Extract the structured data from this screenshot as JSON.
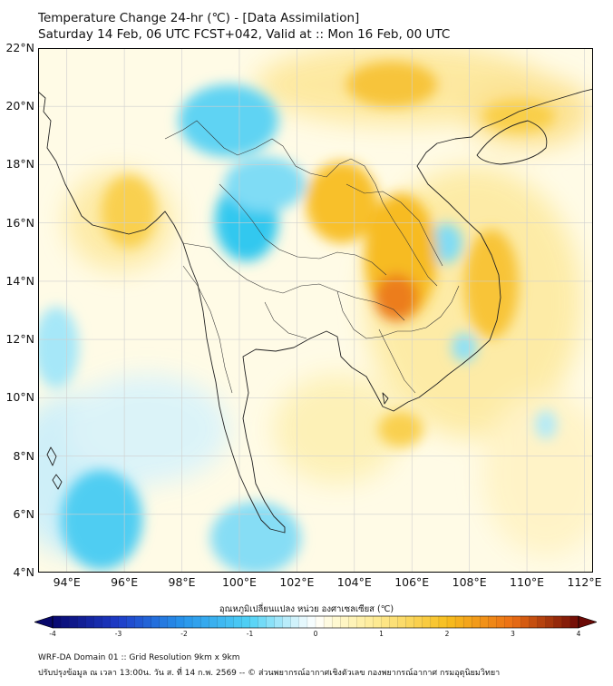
{
  "title": {
    "line1": "Temperature Change 24-hr (℃) - [Data Assimilation]",
    "line2": "Saturday 14 Feb, 06 UTC FCST+042, Valid at :: Mon 16 Feb, 00 UTC"
  },
  "map": {
    "lat_labels": [
      "22°N",
      "20°N",
      "18°N",
      "16°N",
      "14°N",
      "12°N",
      "10°N",
      "8°N",
      "6°N",
      "4°N"
    ],
    "lon_labels": [
      "94°E",
      "96°E",
      "98°E",
      "100°E",
      "102°E",
      "104°E",
      "106°E",
      "108°E",
      "110°E",
      "112°E"
    ],
    "lat_range": [
      4,
      22
    ],
    "lon_range": [
      93,
      112.3
    ],
    "cool_color": "#33ccf0",
    "warm_color": "#f7b500",
    "hot_color": "#ec7a1a"
  },
  "colorbar": {
    "title": "อุณหภูมิเปลี่ยนแปลง หน่วย องศาเซลเซียส (℃)",
    "tick_labels": [
      "-4",
      "-3",
      "-2",
      "-1",
      "0",
      "1",
      "2",
      "3",
      "4"
    ],
    "range": [
      -4,
      4
    ]
  },
  "footer": {
    "line1": "WRF-DA Domain 01 :: Grid Resolution 9km x 9km",
    "line2": "ปรับปรุงข้อมูล ณ เวลา 13:00น. วัน ส. ที่ 14 ก.พ. 2569 -- © ส่วนพยากรณ์อากาศเชิงตัวเลข กองพยากรณ์อากาศ กรมอุตุนิยมวิทยา"
  }
}
